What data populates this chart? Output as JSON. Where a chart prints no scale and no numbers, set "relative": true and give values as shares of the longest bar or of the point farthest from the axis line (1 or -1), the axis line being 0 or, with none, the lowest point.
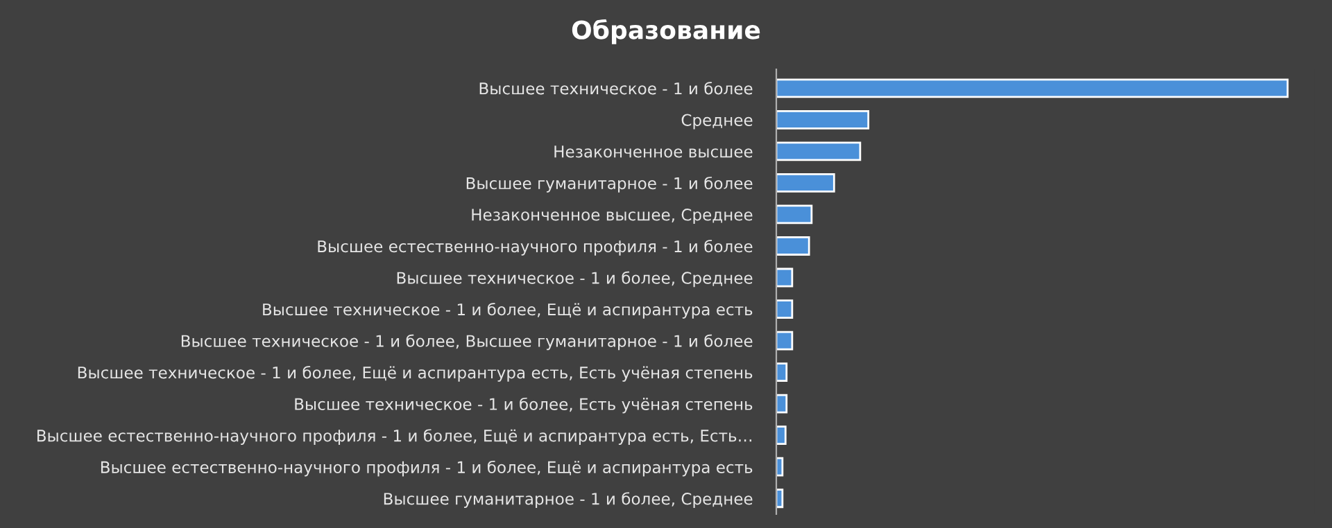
{
  "chart_data": {
    "type": "bar",
    "title": "Образование",
    "orientation": "horizontal",
    "relative": true,
    "categories": [
      "Высшее техническое - 1 и более",
      "Среднее",
      "Незаконченное высшее",
      "Высшее гуманитарное - 1 и более",
      "Незаконченное высшее, Среднее",
      "Высшее естественно-научного профиля - 1 и более",
      "Высшее техническое - 1 и более, Среднее",
      "Высшее техническое - 1 и более, Ещё и аспирантура есть",
      "Высшее техническое - 1 и более, Высшее гуманитарное - 1 и более",
      "Высшее техническое - 1 и более, Ещё и аспирантура есть, Есть учёная степень",
      "Высшее техническое - 1 и более, Есть учёная степень",
      "Высшее естественно-научного профиля - 1 и более, Ещё и аспирантура есть, Есть…",
      "Высшее естественно-научного профиля - 1 и более, Ещё и аспирантура есть",
      "Высшее гуманитарное - 1 и более, Среднее"
    ],
    "values": [
      1,
      0.18,
      0.164,
      0.113,
      0.069,
      0.064,
      0.031,
      0.031,
      0.031,
      0.02,
      0.02,
      0.018,
      0.012,
      0.012
    ],
    "color": "#4a90d9",
    "grid": false,
    "legend": false
  }
}
